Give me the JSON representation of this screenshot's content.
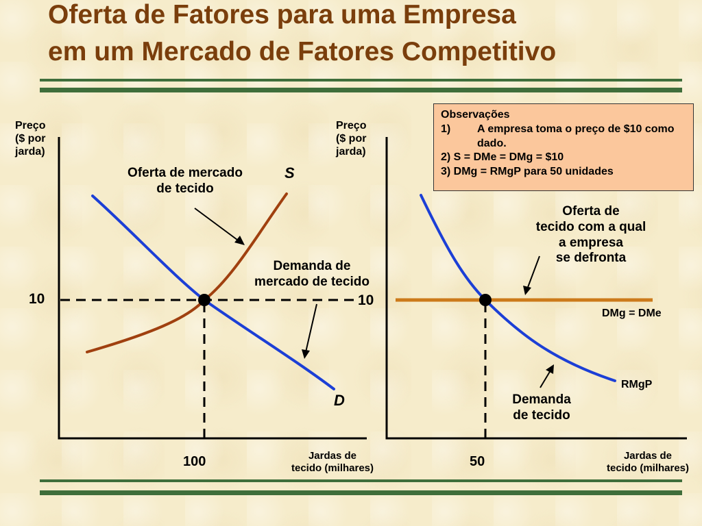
{
  "title": {
    "line1": "Oferta de Fatores para uma Empresa",
    "line2": "em um Mercado de Fatores Competitivo"
  },
  "colors": {
    "title": "#7a3e0c",
    "rule": "#3f6e3b",
    "supply_curve": "#a0400f",
    "demand_curve": "#1c3fd6",
    "firm_supply_line": "#cc7a1a",
    "observations_box": "#fbc79c"
  },
  "left_panel": {
    "y_axis_label": "Preço\n($ por\njarda)",
    "x_axis_label": "Jardas de\ntecido (milhares)",
    "price_tick": "10",
    "quantity_tick": "100",
    "supply_label": "S",
    "demand_label": "D",
    "supply_annotation": "Oferta de mercado\nde tecido",
    "demand_annotation": "Demanda de\nmercado de tecido"
  },
  "right_panel": {
    "y_axis_label": "Preço\n($ por\njarda)",
    "x_axis_label": "Jardas de\ntecido (milhares)",
    "price_tick": "10",
    "quantity_tick": "50",
    "firm_supply_annotation": "Oferta de\ntecido com a qual\na empresa\nse defronta",
    "horizontal_line_label": "DMg = DMe",
    "demand_curve_label": "RMgP",
    "demand_annotation": "Demanda\nde tecido"
  },
  "observations": {
    "heading": "Observações",
    "item1_num": "1)",
    "item1_text": "A empresa toma o preço de $10 como dado.",
    "item2": "2) S = DMe = DMg = $10",
    "item3": "3) DMg = RMgP para 50 unidades"
  }
}
